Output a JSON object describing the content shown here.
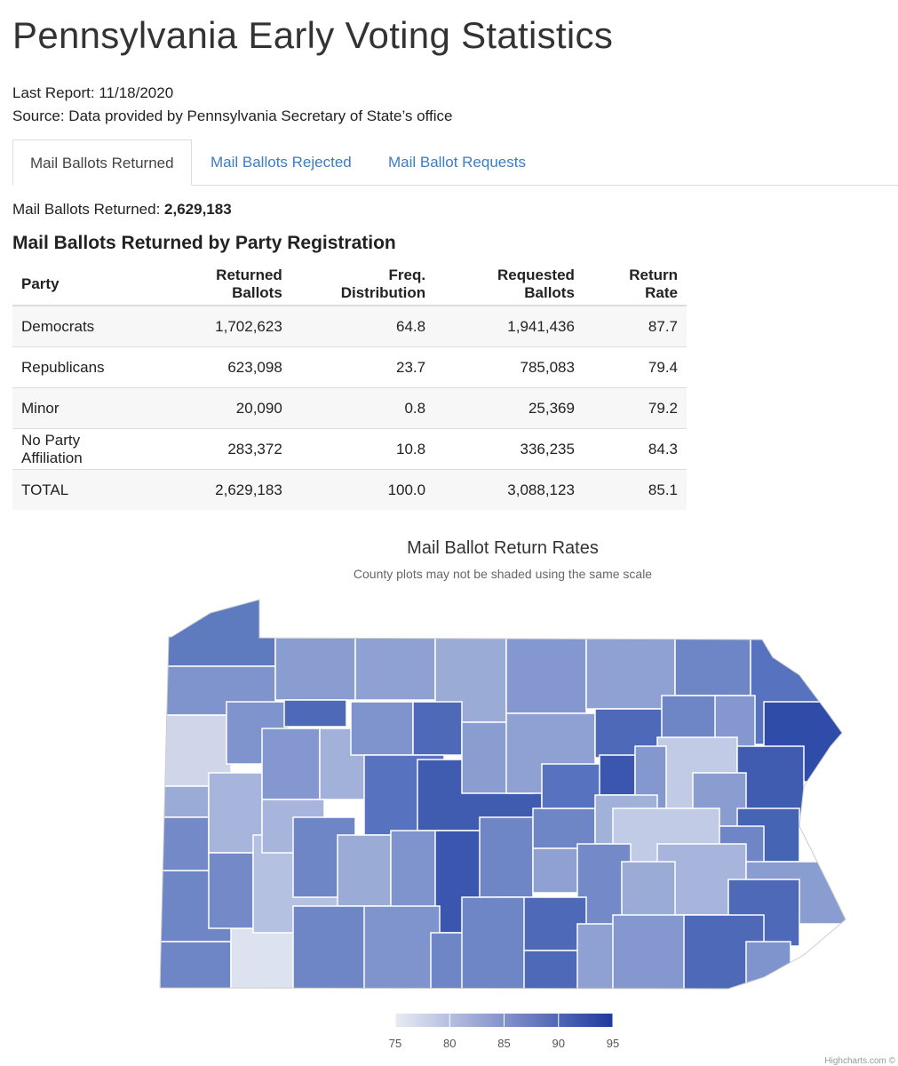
{
  "header": {
    "title": "Pennsylvania Early Voting Statistics",
    "last_report": "Last Report: 11/18/2020",
    "source": "Source: Data provided by Pennsylvania Secretary of State’s office"
  },
  "tabs": [
    "Mail Ballots Returned",
    "Mail Ballots Rejected",
    "Mail Ballot Requests"
  ],
  "summary": {
    "label": "Mail Ballots Returned:",
    "value": "2,629,183"
  },
  "table": {
    "title": "Mail Ballots Returned by Party Registration",
    "columns": [
      "Party",
      "Returned Ballots",
      "Freq. Distribution",
      "Requested Ballots",
      "Return Rate"
    ],
    "rows": [
      [
        "Democrats",
        "1,702,623",
        "64.8",
        "1,941,436",
        "87.7"
      ],
      [
        "Republicans",
        "623,098",
        "23.7",
        "785,083",
        "79.4"
      ],
      [
        "Minor",
        "20,090",
        "0.8",
        "25,369",
        "79.2"
      ],
      [
        "No Party Affiliation",
        "283,372",
        "10.8",
        "336,235",
        "84.3"
      ],
      [
        "TOTAL",
        "2,629,183",
        "100.0",
        "3,088,123",
        "85.1"
      ]
    ]
  },
  "map": {
    "title": "Mail Ballot Return Rates",
    "subtitle": "County plots may not be shaded using the same scale",
    "color_range": [
      75,
      95
    ],
    "color_ticks": [
      75,
      80,
      85,
      90,
      95
    ],
    "min_color": "#e8ebf5",
    "max_color": "#1e3a9e",
    "credits": "Highcharts.com ©"
  }
}
